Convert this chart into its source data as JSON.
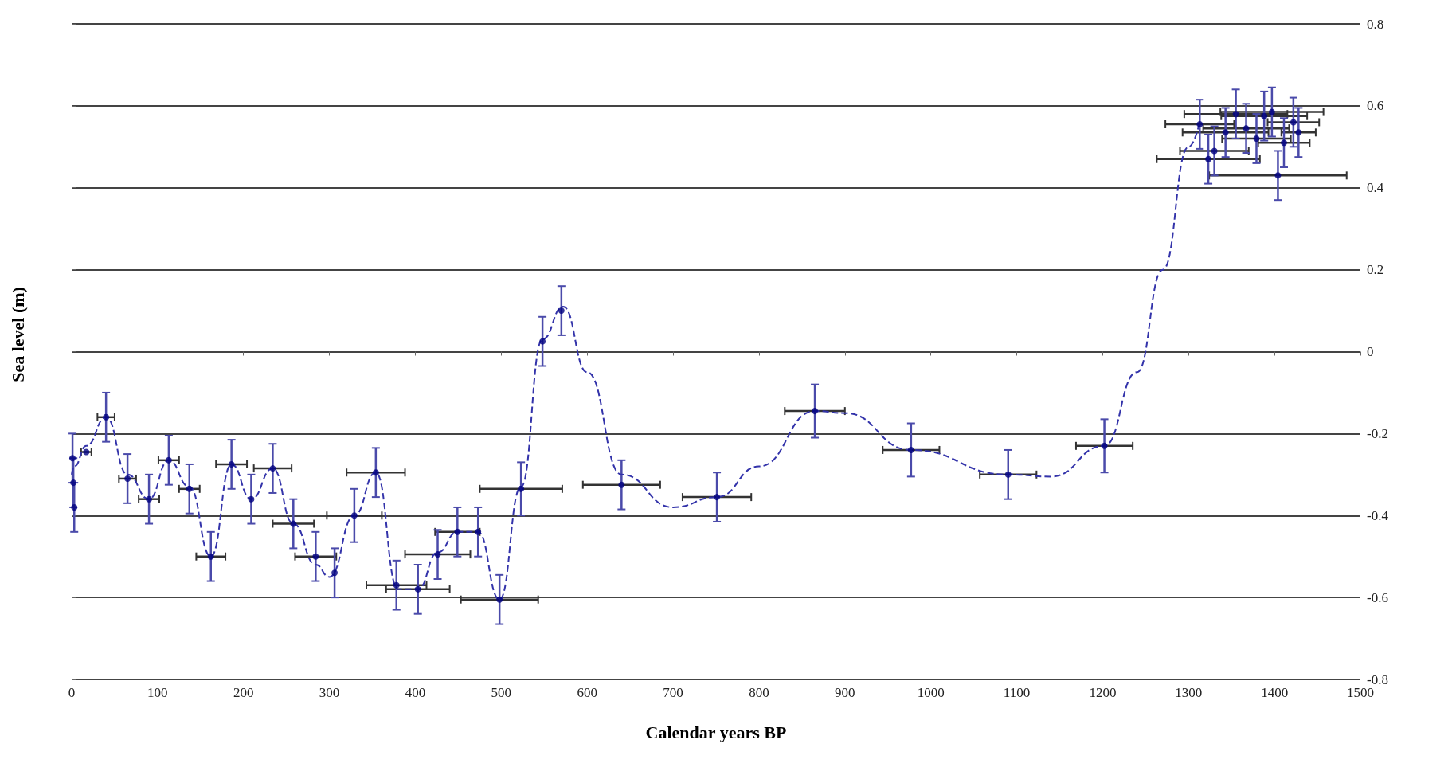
{
  "chart_data": {
    "type": "scatter",
    "xlabel": "Calendar years BP",
    "ylabel": "Sea level (m)",
    "xlim": [
      0,
      1500
    ],
    "xticks": [
      0,
      100,
      200,
      300,
      400,
      500,
      600,
      700,
      800,
      900,
      1000,
      1100,
      1200,
      1300,
      1400,
      1500
    ],
    "ylim": [
      -0.8,
      0.8
    ],
    "yticks": [
      -0.8,
      -0.6,
      -0.4,
      -0.2,
      0,
      0.2,
      0.4,
      0.6,
      0.8
    ],
    "grid": "y",
    "series": [
      {
        "color": "#000080",
        "marker": "circle",
        "x": [
          1,
          2,
          3,
          17,
          40,
          65,
          90,
          113,
          137,
          162,
          186,
          209,
          234,
          258,
          284,
          306,
          329,
          354,
          378,
          403,
          426,
          449,
          473,
          498,
          523,
          548,
          570,
          640,
          751,
          865,
          977,
          1090,
          1202,
          1313,
          1323,
          1330,
          1343,
          1355,
          1367,
          1379,
          1388,
          1397,
          1404,
          1411,
          1422,
          1428
        ],
        "values": [
          -0.26,
          -0.32,
          -0.38,
          -0.245,
          -0.16,
          -0.31,
          -0.36,
          -0.265,
          -0.335,
          -0.5,
          -0.275,
          -0.36,
          -0.285,
          -0.42,
          -0.5,
          -0.54,
          -0.4,
          -0.295,
          -0.57,
          -0.58,
          -0.495,
          -0.44,
          -0.44,
          -0.605,
          -0.335,
          0.025,
          0.1,
          -0.325,
          -0.355,
          -0.145,
          -0.24,
          -0.3,
          -0.23,
          0.555,
          0.47,
          0.49,
          0.535,
          0.58,
          0.545,
          0.52,
          0.575,
          0.585,
          0.43,
          0.51,
          0.56,
          0.535
        ],
        "errors": [
          0.06,
          0.06,
          0.06,
          null,
          0.06,
          0.06,
          0.06,
          0.06,
          0.06,
          0.06,
          0.06,
          0.06,
          0.06,
          0.06,
          0.06,
          0.06,
          0.065,
          0.06,
          0.06,
          0.06,
          0.06,
          0.06,
          0.06,
          0.06,
          0.065,
          0.06,
          0.06,
          0.06,
          0.06,
          0.065,
          0.065,
          0.06,
          0.065,
          0.06,
          0.06,
          0.06,
          0.06,
          0.06,
          0.06,
          0.06,
          0.06,
          0.06,
          0.06,
          0.06,
          0.06,
          0.06
        ],
        "xerrors": [
          null,
          null,
          null,
          6,
          10,
          10,
          12,
          12,
          12,
          17,
          18,
          null,
          22,
          24,
          24,
          null,
          32,
          34,
          35,
          37,
          38,
          26,
          null,
          45,
          48,
          null,
          null,
          45,
          40,
          35,
          33,
          33,
          33,
          40,
          60,
          40,
          50,
          60,
          50,
          40,
          50,
          60,
          80,
          30,
          30,
          20
        ]
      },
      {
        "type": "line",
        "color": "#3333aa",
        "line_style": "dashed",
        "marker": "none",
        "x": [
          0,
          3,
          17,
          40,
          65,
          90,
          113,
          137,
          162,
          186,
          209,
          234,
          258,
          284,
          300,
          329,
          354,
          380,
          403,
          426,
          449,
          473,
          498,
          523,
          548,
          572,
          600,
          640,
          700,
          751,
          800,
          865,
          900,
          977,
          1090,
          1140,
          1202,
          1240,
          1270,
          1300,
          1313
        ],
        "values": [
          -0.3,
          -0.28,
          -0.23,
          -0.16,
          -0.3,
          -0.36,
          -0.265,
          -0.33,
          -0.5,
          -0.275,
          -0.36,
          -0.285,
          -0.42,
          -0.52,
          -0.55,
          -0.4,
          -0.295,
          -0.58,
          -0.58,
          -0.49,
          -0.44,
          -0.44,
          -0.605,
          -0.33,
          0.03,
          0.11,
          -0.05,
          -0.3,
          -0.38,
          -0.355,
          -0.28,
          -0.145,
          -0.15,
          -0.24,
          -0.3,
          -0.305,
          -0.23,
          -0.05,
          0.2,
          0.5,
          0.56
        ]
      }
    ]
  }
}
